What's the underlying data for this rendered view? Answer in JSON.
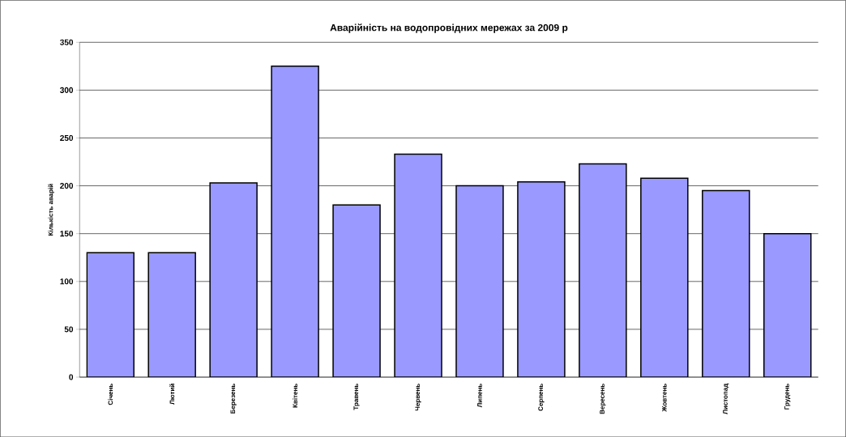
{
  "chart_data": {
    "type": "bar",
    "title": "Аварійність на водопровідних мережах за 2009 р",
    "ylabel": "Кількість аварій",
    "categories": [
      "Січень",
      "Лютий",
      "Березень",
      "Квітень",
      "Травень",
      "Червень",
      "Липень",
      "Серпень",
      "Вересень",
      "Жовтень",
      "Листопад",
      "Грудень"
    ],
    "values": [
      130,
      130,
      203,
      325,
      180,
      233,
      200,
      204,
      223,
      208,
      195,
      150
    ],
    "color": "#9999ff",
    "ylim": [
      0,
      350
    ],
    "yticks": [
      0,
      50,
      100,
      150,
      200,
      250,
      300,
      350
    ],
    "grid": "y"
  }
}
